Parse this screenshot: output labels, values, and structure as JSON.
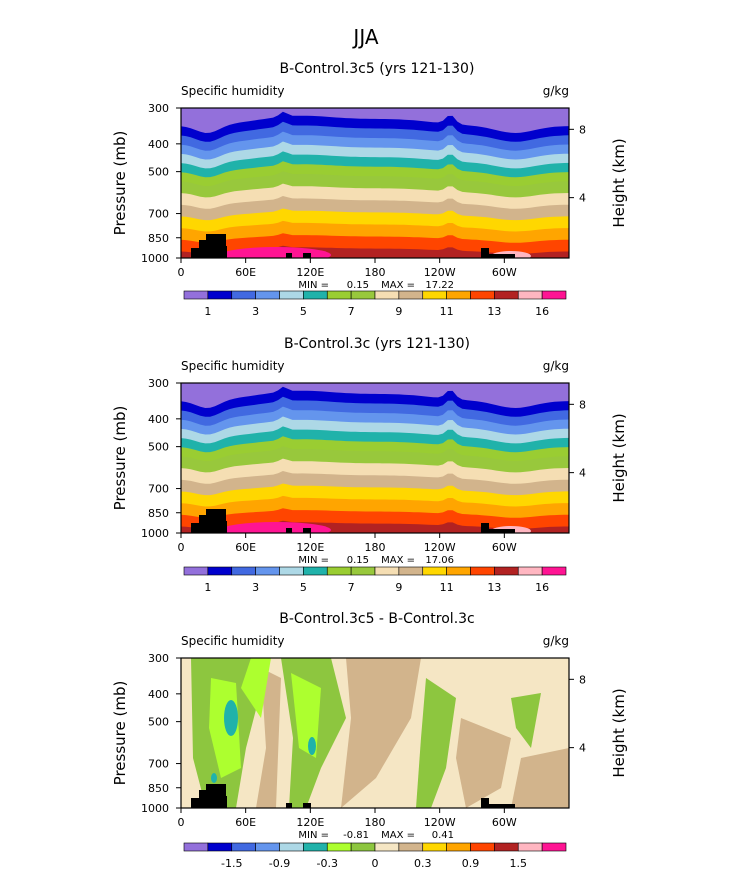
{
  "main_title": "JJA",
  "palette": {
    "humidity": [
      "#9370DB",
      "#0000CD",
      "#4169E1",
      "#6495ED",
      "#ADD8E6",
      "#20B2AA",
      "#9ACD32",
      "#98C83C",
      "#F5DEB3",
      "#D2B48C",
      "#FFD700",
      "#FFA500",
      "#FF4500",
      "#B22222",
      "#FFB6C1",
      "#FF1493"
    ],
    "difference": [
      "#9370DB",
      "#0000CD",
      "#4169E1",
      "#6495ED",
      "#ADD8E6",
      "#20B2AA",
      "#ADFF2F",
      "#8DC63F",
      "#F5E6C4",
      "#D2B48C",
      "#FFD700",
      "#FFA500",
      "#FF4500",
      "#B22222",
      "#FFB6C1",
      "#FF1493"
    ],
    "topo": "#000000"
  },
  "chart_data": [
    {
      "type": "heatmap",
      "title": "B-Control.3c5 (yrs 121-130)",
      "left_label": "Specific humidity",
      "right_label": "g/kg",
      "xlabel": "",
      "ylabel": "Pressure (mb)",
      "ylabel_right": "Height (km)",
      "x_ticks": [
        "0",
        "60E",
        "120E",
        "180",
        "120W",
        "60W"
      ],
      "y_ticks": [
        "300",
        "400",
        "500",
        "700",
        "850",
        "1000"
      ],
      "y2_ticks": [
        "8",
        "4"
      ],
      "stats": {
        "min_label": "MIN =",
        "min": "0.15",
        "max_label": "MAX =",
        "max": "17.22"
      },
      "colorbar_labels": [
        "1",
        "3",
        "5",
        "7",
        "9",
        "11",
        "13",
        "16"
      ],
      "levels": [
        0.5,
        1,
        2,
        3,
        4,
        5,
        6,
        7,
        8,
        9,
        10,
        11,
        12,
        13,
        14,
        16
      ],
      "xlim": [
        0,
        360
      ],
      "ylim": [
        1000,
        300
      ]
    },
    {
      "type": "heatmap",
      "title": "B-Control.3c (yrs 121-130)",
      "left_label": "Specific humidity",
      "right_label": "g/kg",
      "xlabel": "",
      "ylabel": "Pressure (mb)",
      "ylabel_right": "Height (km)",
      "x_ticks": [
        "0",
        "60E",
        "120E",
        "180",
        "120W",
        "60W"
      ],
      "y_ticks": [
        "300",
        "400",
        "500",
        "700",
        "850",
        "1000"
      ],
      "y2_ticks": [
        "8",
        "4"
      ],
      "stats": {
        "min_label": "MIN =",
        "min": "0.15",
        "max_label": "MAX =",
        "max": "17.06"
      },
      "colorbar_labels": [
        "1",
        "3",
        "5",
        "7",
        "9",
        "11",
        "13",
        "16"
      ],
      "levels": [
        0.5,
        1,
        2,
        3,
        4,
        5,
        6,
        7,
        8,
        9,
        10,
        11,
        12,
        13,
        14,
        16
      ],
      "xlim": [
        0,
        360
      ],
      "ylim": [
        1000,
        300
      ]
    },
    {
      "type": "heatmap",
      "title": "B-Control.3c5 - B-Control.3c",
      "left_label": "Specific humidity",
      "right_label": "g/kg",
      "xlabel": "",
      "ylabel": "Pressure (mb)",
      "ylabel_right": "Height (km)",
      "x_ticks": [
        "0",
        "60E",
        "120E",
        "180",
        "120W",
        "60W"
      ],
      "y_ticks": [
        "300",
        "400",
        "500",
        "700",
        "850",
        "1000"
      ],
      "y2_ticks": [
        "8",
        "4"
      ],
      "stats": {
        "min_label": "MIN =",
        "min": "-0.81",
        "max_label": "MAX =",
        "max": "0.41"
      },
      "colorbar_labels": [
        "-1.5",
        "-0.9",
        "-0.3",
        "0",
        "0.3",
        "0.9",
        "1.5"
      ],
      "xlim": [
        0,
        360
      ],
      "ylim": [
        1000,
        300
      ]
    }
  ]
}
